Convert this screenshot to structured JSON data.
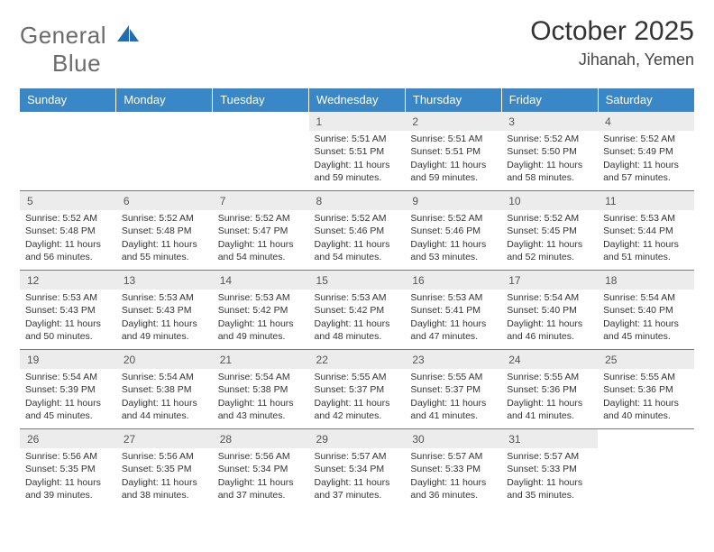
{
  "logo": {
    "general": "General",
    "blue": "Blue"
  },
  "title": "October 2025",
  "location": "Jihanah, Yemen",
  "colors": {
    "header_bg": "#3a87c7",
    "daynum_bg": "#ececec",
    "rule": "#3a87c7"
  },
  "day_headers": [
    "Sunday",
    "Monday",
    "Tuesday",
    "Wednesday",
    "Thursday",
    "Friday",
    "Saturday"
  ],
  "weeks": [
    [
      null,
      null,
      null,
      {
        "n": "1",
        "sr": "5:51 AM",
        "ss": "5:51 PM",
        "dl": "11 hours and 59 minutes."
      },
      {
        "n": "2",
        "sr": "5:51 AM",
        "ss": "5:51 PM",
        "dl": "11 hours and 59 minutes."
      },
      {
        "n": "3",
        "sr": "5:52 AM",
        "ss": "5:50 PM",
        "dl": "11 hours and 58 minutes."
      },
      {
        "n": "4",
        "sr": "5:52 AM",
        "ss": "5:49 PM",
        "dl": "11 hours and 57 minutes."
      }
    ],
    [
      {
        "n": "5",
        "sr": "5:52 AM",
        "ss": "5:48 PM",
        "dl": "11 hours and 56 minutes."
      },
      {
        "n": "6",
        "sr": "5:52 AM",
        "ss": "5:48 PM",
        "dl": "11 hours and 55 minutes."
      },
      {
        "n": "7",
        "sr": "5:52 AM",
        "ss": "5:47 PM",
        "dl": "11 hours and 54 minutes."
      },
      {
        "n": "8",
        "sr": "5:52 AM",
        "ss": "5:46 PM",
        "dl": "11 hours and 54 minutes."
      },
      {
        "n": "9",
        "sr": "5:52 AM",
        "ss": "5:46 PM",
        "dl": "11 hours and 53 minutes."
      },
      {
        "n": "10",
        "sr": "5:52 AM",
        "ss": "5:45 PM",
        "dl": "11 hours and 52 minutes."
      },
      {
        "n": "11",
        "sr": "5:53 AM",
        "ss": "5:44 PM",
        "dl": "11 hours and 51 minutes."
      }
    ],
    [
      {
        "n": "12",
        "sr": "5:53 AM",
        "ss": "5:43 PM",
        "dl": "11 hours and 50 minutes."
      },
      {
        "n": "13",
        "sr": "5:53 AM",
        "ss": "5:43 PM",
        "dl": "11 hours and 49 minutes."
      },
      {
        "n": "14",
        "sr": "5:53 AM",
        "ss": "5:42 PM",
        "dl": "11 hours and 49 minutes."
      },
      {
        "n": "15",
        "sr": "5:53 AM",
        "ss": "5:42 PM",
        "dl": "11 hours and 48 minutes."
      },
      {
        "n": "16",
        "sr": "5:53 AM",
        "ss": "5:41 PM",
        "dl": "11 hours and 47 minutes."
      },
      {
        "n": "17",
        "sr": "5:54 AM",
        "ss": "5:40 PM",
        "dl": "11 hours and 46 minutes."
      },
      {
        "n": "18",
        "sr": "5:54 AM",
        "ss": "5:40 PM",
        "dl": "11 hours and 45 minutes."
      }
    ],
    [
      {
        "n": "19",
        "sr": "5:54 AM",
        "ss": "5:39 PM",
        "dl": "11 hours and 45 minutes."
      },
      {
        "n": "20",
        "sr": "5:54 AM",
        "ss": "5:38 PM",
        "dl": "11 hours and 44 minutes."
      },
      {
        "n": "21",
        "sr": "5:54 AM",
        "ss": "5:38 PM",
        "dl": "11 hours and 43 minutes."
      },
      {
        "n": "22",
        "sr": "5:55 AM",
        "ss": "5:37 PM",
        "dl": "11 hours and 42 minutes."
      },
      {
        "n": "23",
        "sr": "5:55 AM",
        "ss": "5:37 PM",
        "dl": "11 hours and 41 minutes."
      },
      {
        "n": "24",
        "sr": "5:55 AM",
        "ss": "5:36 PM",
        "dl": "11 hours and 41 minutes."
      },
      {
        "n": "25",
        "sr": "5:55 AM",
        "ss": "5:36 PM",
        "dl": "11 hours and 40 minutes."
      }
    ],
    [
      {
        "n": "26",
        "sr": "5:56 AM",
        "ss": "5:35 PM",
        "dl": "11 hours and 39 minutes."
      },
      {
        "n": "27",
        "sr": "5:56 AM",
        "ss": "5:35 PM",
        "dl": "11 hours and 38 minutes."
      },
      {
        "n": "28",
        "sr": "5:56 AM",
        "ss": "5:34 PM",
        "dl": "11 hours and 37 minutes."
      },
      {
        "n": "29",
        "sr": "5:57 AM",
        "ss": "5:34 PM",
        "dl": "11 hours and 37 minutes."
      },
      {
        "n": "30",
        "sr": "5:57 AM",
        "ss": "5:33 PM",
        "dl": "11 hours and 36 minutes."
      },
      {
        "n": "31",
        "sr": "5:57 AM",
        "ss": "5:33 PM",
        "dl": "11 hours and 35 minutes."
      },
      null
    ]
  ],
  "labels": {
    "sunrise": "Sunrise:",
    "sunset": "Sunset:",
    "daylight": "Daylight:"
  }
}
